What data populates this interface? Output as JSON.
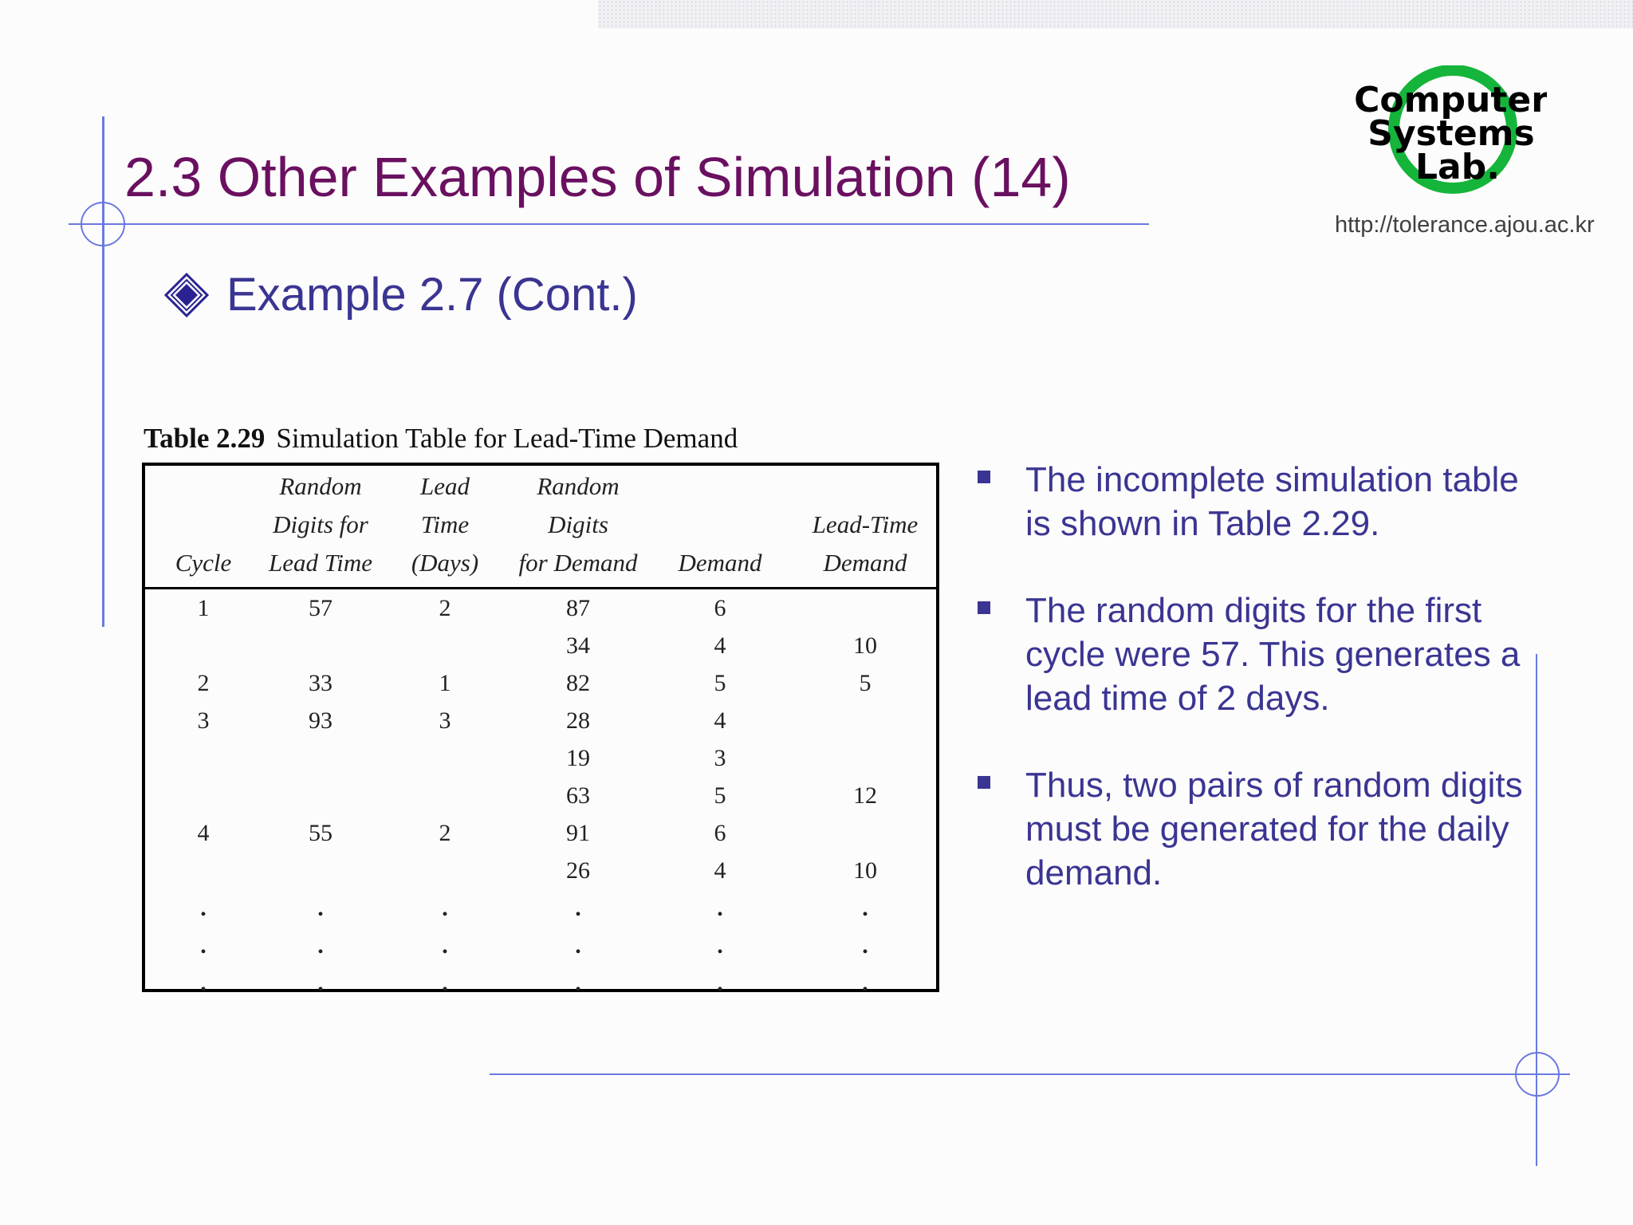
{
  "slide": {
    "title": "2.3 Other Examples of Simulation (14)",
    "subtitle": "Example 2.7 (Cont.)"
  },
  "logo": {
    "line1": "Computer",
    "line2": "Systems",
    "line3": "Lab.",
    "url": "http://tolerance.ajou.ac.kr",
    "ring_color": "#14b53a"
  },
  "table": {
    "caption_number": "Table 2.29",
    "caption_title": "Simulation Table for Lead-Time Demand",
    "headers": [
      [
        "",
        "",
        "Cycle"
      ],
      [
        "Random",
        "Digits for",
        "Lead Time"
      ],
      [
        "Lead",
        "Time",
        "(Days)"
      ],
      [
        "Random",
        "Digits",
        "for Demand"
      ],
      [
        "",
        "",
        "Demand"
      ],
      [
        "",
        "Lead-Time",
        "Demand"
      ]
    ],
    "rows": [
      [
        "1",
        "57",
        "2",
        "87",
        "6",
        ""
      ],
      [
        "",
        "",
        "",
        "34",
        "4",
        "10"
      ],
      [
        "2",
        "33",
        "1",
        "82",
        "5",
        "5"
      ],
      [
        "3",
        "93",
        "3",
        "28",
        "4",
        ""
      ],
      [
        "",
        "",
        "",
        "19",
        "3",
        ""
      ],
      [
        "",
        "",
        "",
        "63",
        "5",
        "12"
      ],
      [
        "4",
        "55",
        "2",
        "91",
        "6",
        ""
      ],
      [
        "",
        "",
        "",
        "26",
        "4",
        "10"
      ],
      [
        ".",
        ".",
        ".",
        ".",
        ".",
        "."
      ],
      [
        ".",
        ".",
        ".",
        ".",
        ".",
        "."
      ],
      [
        ".",
        ".",
        ".",
        ".",
        ".",
        "."
      ]
    ]
  },
  "bullets": [
    "The incomplete simulation table is shown in Table 2.29.",
    "The random digits for the first cycle were 57. This generates a lead time of 2 days.",
    "Thus, two pairs of random digits must be generated for the daily demand."
  ],
  "colors": {
    "title": "#6a1060",
    "body_text": "#3a3592",
    "decor_lines": "#6a79e0"
  }
}
